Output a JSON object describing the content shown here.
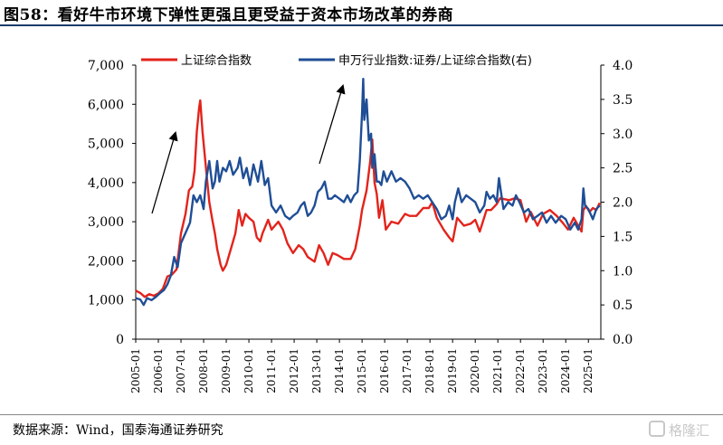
{
  "figure": {
    "title": "图58：看好牛市环境下弹性更强且更受益于资本市场改革的券商",
    "source": "数据来源：Wind，国泰海通证券研究",
    "watermark": "格隆汇"
  },
  "colors": {
    "red": "#e3231b",
    "blue": "#1f4e96",
    "axis": "#000000",
    "title_rule": "#1b3a6b"
  },
  "chart_data": {
    "type": "line",
    "title": "",
    "legend_position": "top",
    "grid": false,
    "x_ticks": [
      "2005-01",
      "2006-01",
      "2007-01",
      "2008-01",
      "2009-01",
      "2010-01",
      "2011-01",
      "2012-01",
      "2013-01",
      "2014-01",
      "2015-01",
      "2016-01",
      "2017-01",
      "2018-01",
      "2019-01",
      "2020-01",
      "2021-01",
      "2022-01",
      "2023-01",
      "2024-01",
      "2025-01"
    ],
    "xlim": [
      2005.0,
      2025.55
    ],
    "y_left": {
      "ticks": [
        "0",
        "1,000",
        "2,000",
        "3,000",
        "4,000",
        "5,000",
        "6,000",
        "7,000"
      ],
      "ylim": [
        0,
        7000
      ]
    },
    "y_right": {
      "ticks": [
        "0.0",
        "0.5",
        "1.0",
        "1.5",
        "2.0",
        "2.5",
        "3.0",
        "3.5",
        "4.0"
      ],
      "ylim": [
        0,
        4
      ]
    },
    "series": [
      {
        "name": "上证综合指数",
        "axis": "left",
        "color": "#e3231b",
        "points": [
          [
            2005.0,
            1240
          ],
          [
            2005.2,
            1180
          ],
          [
            2005.4,
            1080
          ],
          [
            2005.6,
            1150
          ],
          [
            2005.8,
            1110
          ],
          [
            2006.0,
            1170
          ],
          [
            2006.2,
            1290
          ],
          [
            2006.4,
            1600
          ],
          [
            2006.6,
            1650
          ],
          [
            2006.8,
            1780
          ],
          [
            2007.0,
            2700
          ],
          [
            2007.2,
            3200
          ],
          [
            2007.35,
            3800
          ],
          [
            2007.5,
            3900
          ],
          [
            2007.6,
            4300
          ],
          [
            2007.7,
            5300
          ],
          [
            2007.8,
            5900
          ],
          [
            2007.85,
            6100
          ],
          [
            2007.95,
            5300
          ],
          [
            2008.1,
            4400
          ],
          [
            2008.25,
            3500
          ],
          [
            2008.4,
            3000
          ],
          [
            2008.5,
            2700
          ],
          [
            2008.6,
            2300
          ],
          [
            2008.75,
            1900
          ],
          [
            2008.85,
            1750
          ],
          [
            2009.0,
            1900
          ],
          [
            2009.2,
            2300
          ],
          [
            2009.4,
            2700
          ],
          [
            2009.55,
            3300
          ],
          [
            2009.7,
            2900
          ],
          [
            2009.85,
            3200
          ],
          [
            2010.0,
            3100
          ],
          [
            2010.2,
            3000
          ],
          [
            2010.35,
            2600
          ],
          [
            2010.5,
            2500
          ],
          [
            2010.6,
            2700
          ],
          [
            2010.85,
            3050
          ],
          [
            2011.0,
            2800
          ],
          [
            2011.3,
            3000
          ],
          [
            2011.5,
            2800
          ],
          [
            2011.7,
            2450
          ],
          [
            2011.95,
            2200
          ],
          [
            2012.2,
            2400
          ],
          [
            2012.4,
            2300
          ],
          [
            2012.6,
            2100
          ],
          [
            2012.9,
            1980
          ],
          [
            2013.1,
            2400
          ],
          [
            2013.3,
            2200
          ],
          [
            2013.5,
            1900
          ],
          [
            2013.7,
            2200
          ],
          [
            2013.9,
            2150
          ],
          [
            2014.2,
            2050
          ],
          [
            2014.5,
            2050
          ],
          [
            2014.7,
            2300
          ],
          [
            2014.9,
            2900
          ],
          [
            2015.0,
            3300
          ],
          [
            2015.2,
            3800
          ],
          [
            2015.35,
            4500
          ],
          [
            2015.45,
            5100
          ],
          [
            2015.55,
            4000
          ],
          [
            2015.65,
            3700
          ],
          [
            2015.75,
            3100
          ],
          [
            2015.9,
            3550
          ],
          [
            2016.05,
            2800
          ],
          [
            2016.3,
            3000
          ],
          [
            2016.6,
            2950
          ],
          [
            2016.9,
            3200
          ],
          [
            2017.1,
            3150
          ],
          [
            2017.4,
            3150
          ],
          [
            2017.7,
            3350
          ],
          [
            2017.95,
            3350
          ],
          [
            2018.1,
            3500
          ],
          [
            2018.3,
            3100
          ],
          [
            2018.6,
            2800
          ],
          [
            2018.85,
            2600
          ],
          [
            2019.0,
            2500
          ],
          [
            2019.2,
            3100
          ],
          [
            2019.5,
            2900
          ],
          [
            2019.8,
            2950
          ],
          [
            2020.0,
            3050
          ],
          [
            2020.2,
            2750
          ],
          [
            2020.5,
            3300
          ],
          [
            2020.7,
            3300
          ],
          [
            2020.95,
            3450
          ],
          [
            2021.1,
            3600
          ],
          [
            2021.5,
            3550
          ],
          [
            2021.75,
            3600
          ],
          [
            2022.0,
            3550
          ],
          [
            2022.25,
            3000
          ],
          [
            2022.45,
            3250
          ],
          [
            2022.75,
            2900
          ],
          [
            2023.0,
            3200
          ],
          [
            2023.3,
            3300
          ],
          [
            2023.6,
            3150
          ],
          [
            2023.9,
            2950
          ],
          [
            2024.1,
            2800
          ],
          [
            2024.35,
            3100
          ],
          [
            2024.6,
            2850
          ],
          [
            2024.7,
            2750
          ],
          [
            2024.78,
            3300
          ],
          [
            2024.9,
            3400
          ],
          [
            2025.05,
            3250
          ],
          [
            2025.2,
            3350
          ],
          [
            2025.35,
            3300
          ],
          [
            2025.5,
            3480
          ]
        ]
      },
      {
        "name": "申万行业指数:证券/上证综合指数(右)",
        "axis": "right",
        "color": "#1f4e96",
        "points": [
          [
            2005.0,
            0.6
          ],
          [
            2005.2,
            0.58
          ],
          [
            2005.35,
            0.5
          ],
          [
            2005.5,
            0.6
          ],
          [
            2005.7,
            0.57
          ],
          [
            2005.9,
            0.62
          ],
          [
            2006.1,
            0.68
          ],
          [
            2006.25,
            0.72
          ],
          [
            2006.4,
            0.8
          ],
          [
            2006.55,
            0.93
          ],
          [
            2006.7,
            1.2
          ],
          [
            2006.85,
            1.05
          ],
          [
            2007.0,
            1.4
          ],
          [
            2007.2,
            1.55
          ],
          [
            2007.4,
            1.7
          ],
          [
            2007.55,
            2.1
          ],
          [
            2007.7,
            2.0
          ],
          [
            2007.85,
            2.1
          ],
          [
            2008.0,
            1.9
          ],
          [
            2008.1,
            2.3
          ],
          [
            2008.25,
            2.6
          ],
          [
            2008.4,
            2.2
          ],
          [
            2008.5,
            2.3
          ],
          [
            2008.6,
            2.6
          ],
          [
            2008.7,
            2.3
          ],
          [
            2008.85,
            2.5
          ],
          [
            2009.0,
            2.45
          ],
          [
            2009.15,
            2.6
          ],
          [
            2009.3,
            2.4
          ],
          [
            2009.5,
            2.5
          ],
          [
            2009.6,
            2.65
          ],
          [
            2009.75,
            2.35
          ],
          [
            2009.9,
            2.5
          ],
          [
            2010.05,
            2.25
          ],
          [
            2010.2,
            2.55
          ],
          [
            2010.4,
            2.3
          ],
          [
            2010.55,
            2.6
          ],
          [
            2010.7,
            2.25
          ],
          [
            2010.85,
            2.35
          ],
          [
            2011.0,
            1.95
          ],
          [
            2011.2,
            1.85
          ],
          [
            2011.4,
            1.95
          ],
          [
            2011.6,
            1.8
          ],
          [
            2011.8,
            1.75
          ],
          [
            2011.95,
            1.8
          ],
          [
            2012.15,
            1.85
          ],
          [
            2012.3,
            1.95
          ],
          [
            2012.45,
            2.0
          ],
          [
            2012.6,
            1.8
          ],
          [
            2012.75,
            1.85
          ],
          [
            2012.9,
            1.95
          ],
          [
            2013.05,
            2.15
          ],
          [
            2013.2,
            2.2
          ],
          [
            2013.35,
            2.3
          ],
          [
            2013.5,
            2.05
          ],
          [
            2013.65,
            2.05
          ],
          [
            2013.8,
            2.1
          ],
          [
            2014.0,
            2.05
          ],
          [
            2014.2,
            2.0
          ],
          [
            2014.35,
            2.1
          ],
          [
            2014.5,
            2.0
          ],
          [
            2014.65,
            2.1
          ],
          [
            2014.8,
            2.15
          ],
          [
            2014.9,
            2.6
          ],
          [
            2015.0,
            3.3
          ],
          [
            2015.05,
            3.8
          ],
          [
            2015.1,
            3.2
          ],
          [
            2015.2,
            3.5
          ],
          [
            2015.3,
            2.9
          ],
          [
            2015.4,
            3.0
          ],
          [
            2015.45,
            2.5
          ],
          [
            2015.55,
            2.7
          ],
          [
            2015.65,
            2.3
          ],
          [
            2015.75,
            2.3
          ],
          [
            2015.85,
            2.25
          ],
          [
            2015.95,
            2.45
          ],
          [
            2016.1,
            2.3
          ],
          [
            2016.3,
            2.45
          ],
          [
            2016.5,
            2.3
          ],
          [
            2016.7,
            2.35
          ],
          [
            2016.9,
            2.3
          ],
          [
            2017.1,
            2.2
          ],
          [
            2017.3,
            2.05
          ],
          [
            2017.5,
            2.1
          ],
          [
            2017.7,
            2.05
          ],
          [
            2017.9,
            2.1
          ],
          [
            2018.1,
            2.0
          ],
          [
            2018.3,
            1.9
          ],
          [
            2018.5,
            1.75
          ],
          [
            2018.7,
            1.8
          ],
          [
            2018.85,
            1.95
          ],
          [
            2019.0,
            1.75
          ],
          [
            2019.1,
            2.0
          ],
          [
            2019.25,
            2.2
          ],
          [
            2019.4,
            2.0
          ],
          [
            2019.6,
            2.1
          ],
          [
            2019.8,
            2.05
          ],
          [
            2020.0,
            2.0
          ],
          [
            2020.2,
            1.85
          ],
          [
            2020.4,
            1.95
          ],
          [
            2020.5,
            2.15
          ],
          [
            2020.65,
            2.05
          ],
          [
            2020.8,
            2.1
          ],
          [
            2020.95,
            2.0
          ],
          [
            2021.05,
            2.35
          ],
          [
            2021.25,
            1.9
          ],
          [
            2021.45,
            2.0
          ],
          [
            2021.65,
            1.95
          ],
          [
            2021.8,
            2.1
          ],
          [
            2021.95,
            2.0
          ],
          [
            2022.15,
            1.85
          ],
          [
            2022.35,
            1.9
          ],
          [
            2022.55,
            1.75
          ],
          [
            2022.75,
            1.8
          ],
          [
            2022.95,
            1.85
          ],
          [
            2023.15,
            1.7
          ],
          [
            2023.35,
            1.8
          ],
          [
            2023.55,
            1.7
          ],
          [
            2023.8,
            1.8
          ],
          [
            2024.0,
            1.75
          ],
          [
            2024.2,
            1.6
          ],
          [
            2024.4,
            1.7
          ],
          [
            2024.55,
            1.6
          ],
          [
            2024.7,
            1.75
          ],
          [
            2024.78,
            2.2
          ],
          [
            2024.85,
            1.95
          ],
          [
            2025.0,
            1.9
          ],
          [
            2025.2,
            1.75
          ],
          [
            2025.35,
            1.9
          ],
          [
            2025.5,
            1.95
          ]
        ]
      }
    ]
  }
}
